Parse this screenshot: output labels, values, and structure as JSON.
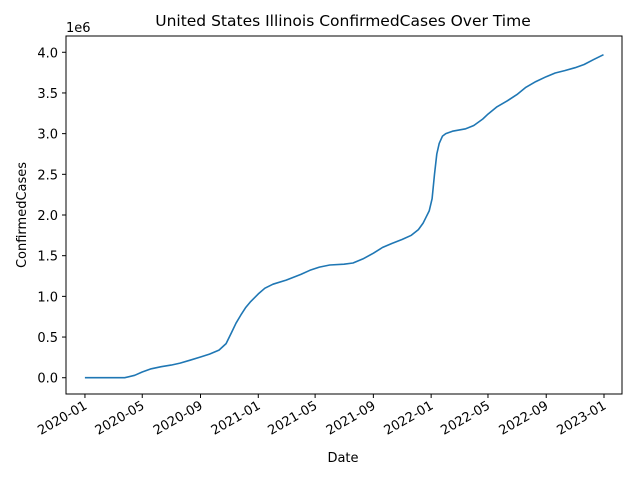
{
  "chart_data": {
    "type": "line",
    "title": "United States Illinois ConfirmedCases Over Time",
    "xlabel": "Date",
    "ylabel": "ConfirmedCases",
    "y_offset_label": "1e6",
    "xlim": [
      "2019-11-22",
      "2023-02-08"
    ],
    "ylim": [
      -0.2,
      4.2
    ],
    "y_ticks": [
      0.0,
      0.5,
      1.0,
      1.5,
      2.0,
      2.5,
      3.0,
      3.5,
      4.0
    ],
    "y_tick_labels": [
      "0.0",
      "0.5",
      "1.0",
      "1.5",
      "2.0",
      "2.5",
      "3.0",
      "3.5",
      "4.0"
    ],
    "x_ticks": [
      "2020-01-01",
      "2020-05-01",
      "2020-09-01",
      "2021-01-01",
      "2021-05-01",
      "2021-09-01",
      "2022-01-01",
      "2022-05-01",
      "2022-09-01",
      "2023-01-01"
    ],
    "x_tick_labels": [
      "2020-01",
      "2020-05",
      "2020-09",
      "2021-01",
      "2021-05",
      "2021-09",
      "2022-01",
      "2022-05",
      "2022-09",
      "2023-01"
    ],
    "grid": false,
    "line_color": "#1f77b4",
    "series": [
      {
        "x": [
          "2020-01-01",
          "2020-02-01",
          "2020-03-01",
          "2020-03-25",
          "2020-04-15",
          "2020-05-01",
          "2020-05-20",
          "2020-06-10",
          "2020-07-01",
          "2020-07-20",
          "2020-08-10",
          "2020-09-01",
          "2020-09-20",
          "2020-10-10",
          "2020-10-25",
          "2020-11-05",
          "2020-11-15",
          "2020-11-25",
          "2020-12-05",
          "2020-12-15",
          "2021-01-01",
          "2021-01-15",
          "2021-02-01",
          "2021-03-01",
          "2021-04-01",
          "2021-04-20",
          "2021-05-10",
          "2021-06-01",
          "2021-07-01",
          "2021-07-20",
          "2021-08-10",
          "2021-09-01",
          "2021-09-20",
          "2021-10-10",
          "2021-11-01",
          "2021-11-20",
          "2021-12-05",
          "2021-12-15",
          "2021-12-20",
          "2021-12-28",
          "2022-01-03",
          "2022-01-08",
          "2022-01-13",
          "2022-01-18",
          "2022-01-25",
          "2022-02-01",
          "2022-02-15",
          "2022-03-15",
          "2022-04-01",
          "2022-04-20",
          "2022-05-01",
          "2022-05-20",
          "2022-06-10",
          "2022-07-01",
          "2022-07-20",
          "2022-08-10",
          "2022-09-01",
          "2022-09-20",
          "2022-10-10",
          "2022-11-01",
          "2022-11-20",
          "2022-12-10",
          "2022-12-31"
        ],
        "values": [
          0.0,
          0.0,
          0.0,
          0.0,
          0.03,
          0.07,
          0.11,
          0.135,
          0.155,
          0.18,
          0.215,
          0.255,
          0.29,
          0.34,
          0.42,
          0.55,
          0.67,
          0.77,
          0.86,
          0.93,
          1.03,
          1.1,
          1.15,
          1.2,
          1.27,
          1.32,
          1.36,
          1.385,
          1.395,
          1.41,
          1.46,
          1.53,
          1.6,
          1.65,
          1.7,
          1.75,
          1.82,
          1.9,
          1.96,
          2.05,
          2.2,
          2.5,
          2.75,
          2.88,
          2.97,
          3.0,
          3.03,
          3.06,
          3.1,
          3.18,
          3.24,
          3.33,
          3.4,
          3.48,
          3.57,
          3.64,
          3.7,
          3.745,
          3.775,
          3.81,
          3.85,
          3.91,
          3.97
        ]
      }
    ]
  }
}
